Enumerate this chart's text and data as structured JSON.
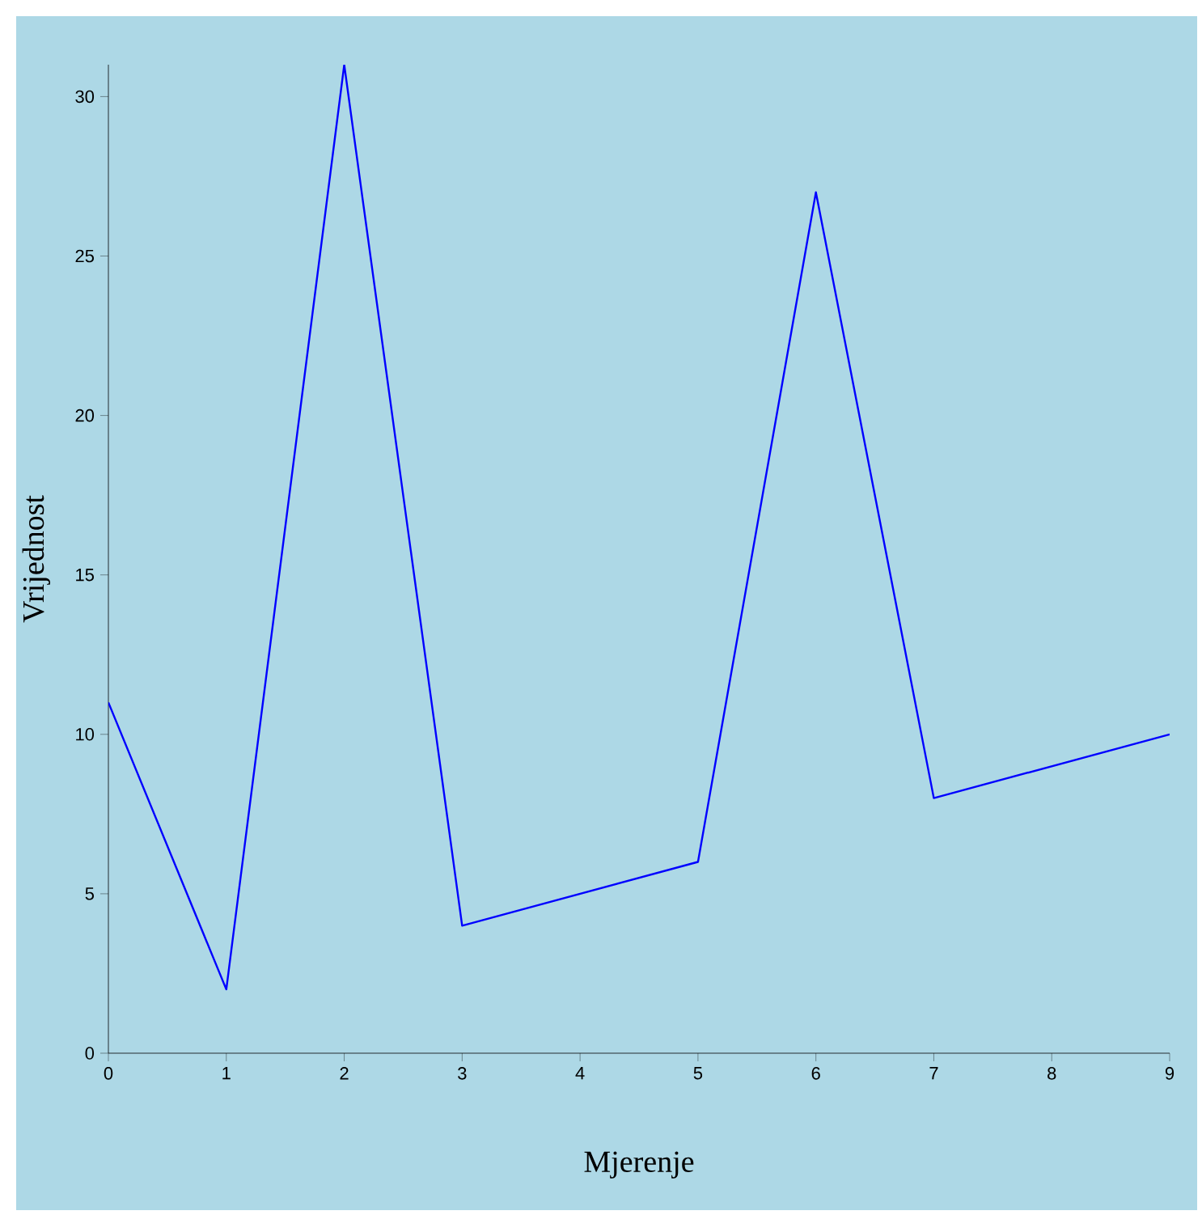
{
  "chart_data": {
    "type": "line",
    "xlabel": "Mjerenje",
    "ylabel": "Vrijednost",
    "x": [
      0,
      1,
      2,
      3,
      4,
      5,
      6,
      7,
      8,
      9
    ],
    "series": [
      {
        "color": "#0000ff",
        "values": [
          11,
          2,
          31,
          4,
          5,
          6,
          27,
          8,
          9,
          10
        ]
      }
    ],
    "xlim": [
      0,
      9
    ],
    "ylim": [
      0,
      31
    ],
    "xticks": [
      0,
      1,
      2,
      3,
      4,
      5,
      6,
      7,
      8,
      9
    ],
    "yticks": [
      0,
      5,
      10,
      15,
      20,
      25,
      30
    ],
    "grid": false,
    "marker": "none",
    "line_style": "solid"
  }
}
